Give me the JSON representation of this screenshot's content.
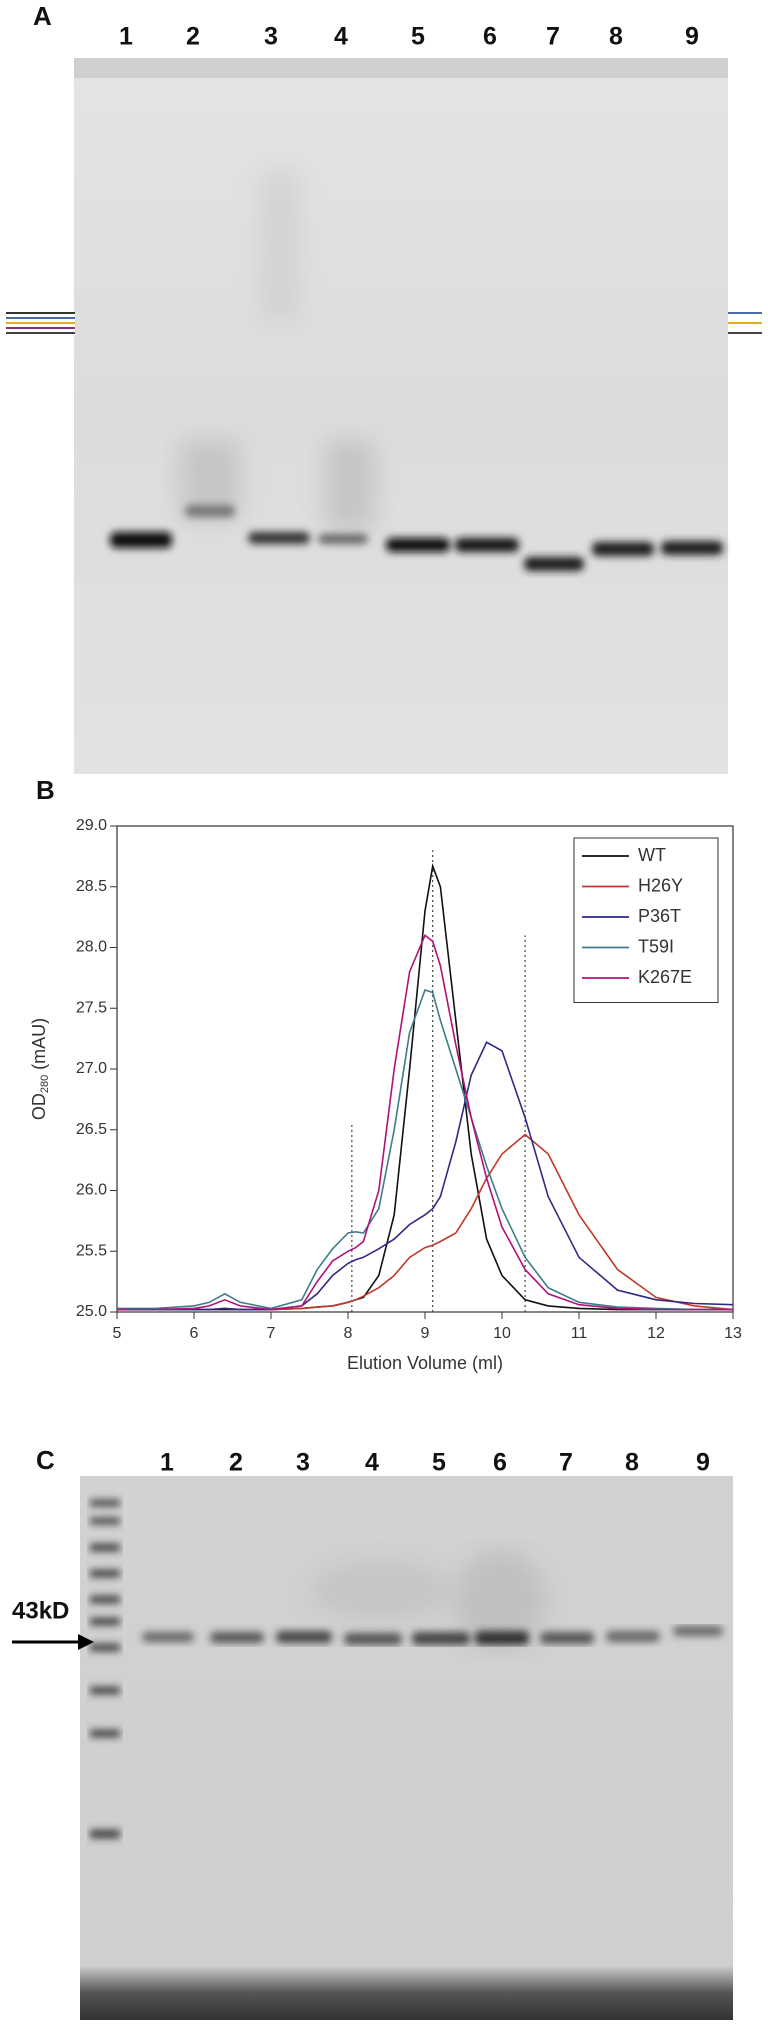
{
  "panel_a": {
    "label": "A",
    "lanes": [
      "1",
      "2",
      "3",
      "4",
      "5",
      "6",
      "7",
      "8",
      "9"
    ]
  },
  "chart_data": {
    "type": "line",
    "panel_label": "B",
    "x_label": "Elution Volume (ml)",
    "y_label": {
      "main": "OD",
      "sub": "280",
      "unit": "(mAU)"
    },
    "x": [
      5,
      5.5,
      6,
      6.2,
      6.4,
      6.6,
      7,
      7.4,
      7.6,
      7.8,
      8,
      8.1,
      8.2,
      8.4,
      8.6,
      8.8,
      9,
      9.1,
      9.2,
      9.4,
      9.6,
      9.8,
      10,
      10.3,
      10.6,
      11,
      11.5,
      12,
      12.5,
      13
    ],
    "series": [
      {
        "name": "WT",
        "color": "#111111",
        "values": [
          25.02,
          25.02,
          25.02,
          25.02,
          25.02,
          25.02,
          25.02,
          25.03,
          25.04,
          25.05,
          25.08,
          25.1,
          25.12,
          25.3,
          25.8,
          27.0,
          28.3,
          28.67,
          28.5,
          27.4,
          26.3,
          25.6,
          25.3,
          25.1,
          25.05,
          25.03,
          25.02,
          25.02,
          25.02,
          25.02
        ]
      },
      {
        "name": "H26Y",
        "color": "#c0392b",
        "values": [
          25.02,
          25.02,
          25.02,
          25.02,
          25.03,
          25.02,
          25.02,
          25.03,
          25.04,
          25.05,
          25.08,
          25.1,
          25.13,
          25.2,
          25.3,
          25.45,
          25.53,
          25.55,
          25.58,
          25.65,
          25.85,
          26.1,
          26.3,
          26.46,
          26.3,
          25.8,
          25.35,
          25.12,
          25.05,
          25.02
        ]
      },
      {
        "name": "P36T",
        "color": "#2e2a86",
        "values": [
          25.02,
          25.02,
          25.02,
          25.02,
          25.03,
          25.02,
          25.02,
          25.05,
          25.15,
          25.3,
          25.4,
          25.43,
          25.45,
          25.52,
          25.6,
          25.72,
          25.8,
          25.85,
          25.95,
          26.4,
          26.95,
          27.22,
          27.15,
          26.6,
          25.95,
          25.45,
          25.18,
          25.1,
          25.07,
          25.06
        ]
      },
      {
        "name": "T59I",
        "color": "#3f7c8c",
        "values": [
          25.03,
          25.03,
          25.05,
          25.08,
          25.15,
          25.08,
          25.03,
          25.1,
          25.35,
          25.52,
          25.65,
          25.66,
          25.65,
          25.85,
          26.5,
          27.3,
          27.65,
          27.63,
          27.4,
          27.0,
          26.6,
          26.2,
          25.85,
          25.45,
          25.2,
          25.08,
          25.04,
          25.03,
          25.02,
          25.02
        ]
      },
      {
        "name": "K267E",
        "color": "#b0127a",
        "values": [
          25.02,
          25.02,
          25.03,
          25.05,
          25.1,
          25.05,
          25.02,
          25.05,
          25.25,
          25.42,
          25.5,
          25.53,
          25.58,
          26.0,
          27.0,
          27.8,
          28.1,
          28.05,
          27.85,
          27.2,
          26.6,
          26.1,
          25.7,
          25.35,
          25.15,
          25.06,
          25.03,
          25.02,
          25.02,
          25.02
        ]
      }
    ],
    "reference_lines": [
      {
        "x": 8.05,
        "y_top": 26.55
      },
      {
        "x": 9.1,
        "y_top": 28.8
      },
      {
        "x": 10.3,
        "y_top": 28.1
      }
    ],
    "xlim": [
      5,
      13
    ],
    "xticks": [
      5,
      6,
      7,
      8,
      9,
      10,
      11,
      12,
      13
    ],
    "ylim": [
      25,
      29
    ],
    "yticks": [
      {
        "value": 25,
        "label": "25.0"
      },
      25.5,
      {
        "value": 26,
        "label": "26.0"
      },
      26.5,
      {
        "value": 27,
        "label": "27.0"
      },
      27.5,
      {
        "value": 28,
        "label": "28.0"
      },
      28.5,
      {
        "value": 29,
        "label": "29.0"
      }
    ],
    "legend": "upper right"
  },
  "panel_c": {
    "label": "C",
    "lanes": [
      "1",
      "2",
      "3",
      "4",
      "5",
      "6",
      "7",
      "8",
      "9"
    ],
    "marker_label": "43kD"
  }
}
